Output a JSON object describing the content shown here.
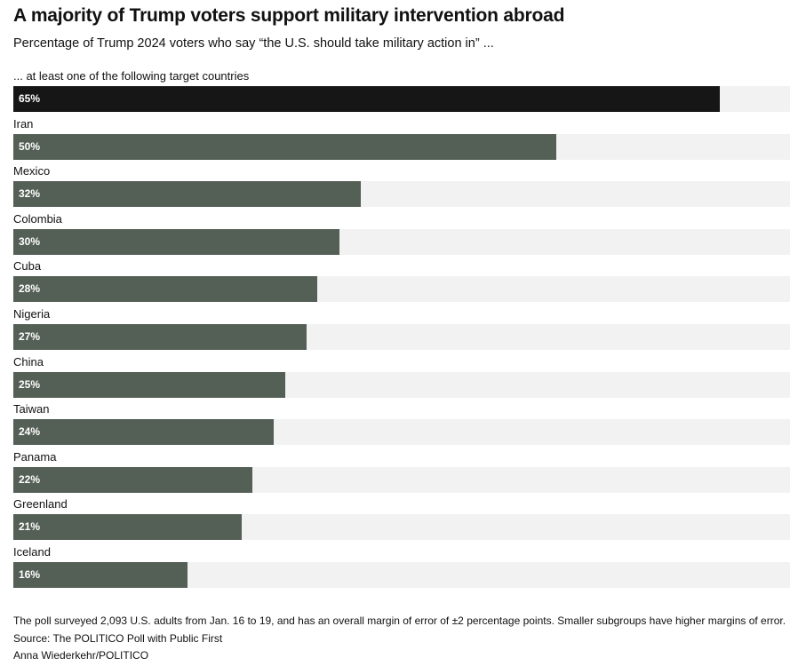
{
  "chart_data": {
    "type": "bar",
    "orientation": "horizontal",
    "title": "A majority of Trump voters support military intervention abroad",
    "subtitle": "Percentage of Trump 2024 voters who say “the U.S. should take military action in” ...",
    "categories": [
      "... at least one of the following target countries",
      "Iran",
      "Mexico",
      "Colombia",
      "Cuba",
      "Nigeria",
      "China",
      "Taiwan",
      "Panama",
      "Greenland",
      "Iceland"
    ],
    "values": [
      65,
      50,
      32,
      30,
      28,
      27,
      25,
      24,
      22,
      21,
      16
    ],
    "value_labels": [
      "65%",
      "50%",
      "32%",
      "30%",
      "28%",
      "27%",
      "25%",
      "24%",
      "22%",
      "21%",
      "16%"
    ],
    "highlighted_index": 0,
    "xlim": [
      0,
      71.5
    ],
    "colors": {
      "highlight": "#161616",
      "bar": "#545f56",
      "track": "#f2f2f2"
    }
  },
  "footer": {
    "note": "The poll surveyed 2,093 U.S. adults from Jan. 16 to 19, and has an overall margin of error of ±2 percentage points. Smaller subgroups have higher margins of error.",
    "source": "Source: The POLITICO Poll with Public First",
    "credit": "Anna Wiederkehr/POLITICO"
  }
}
